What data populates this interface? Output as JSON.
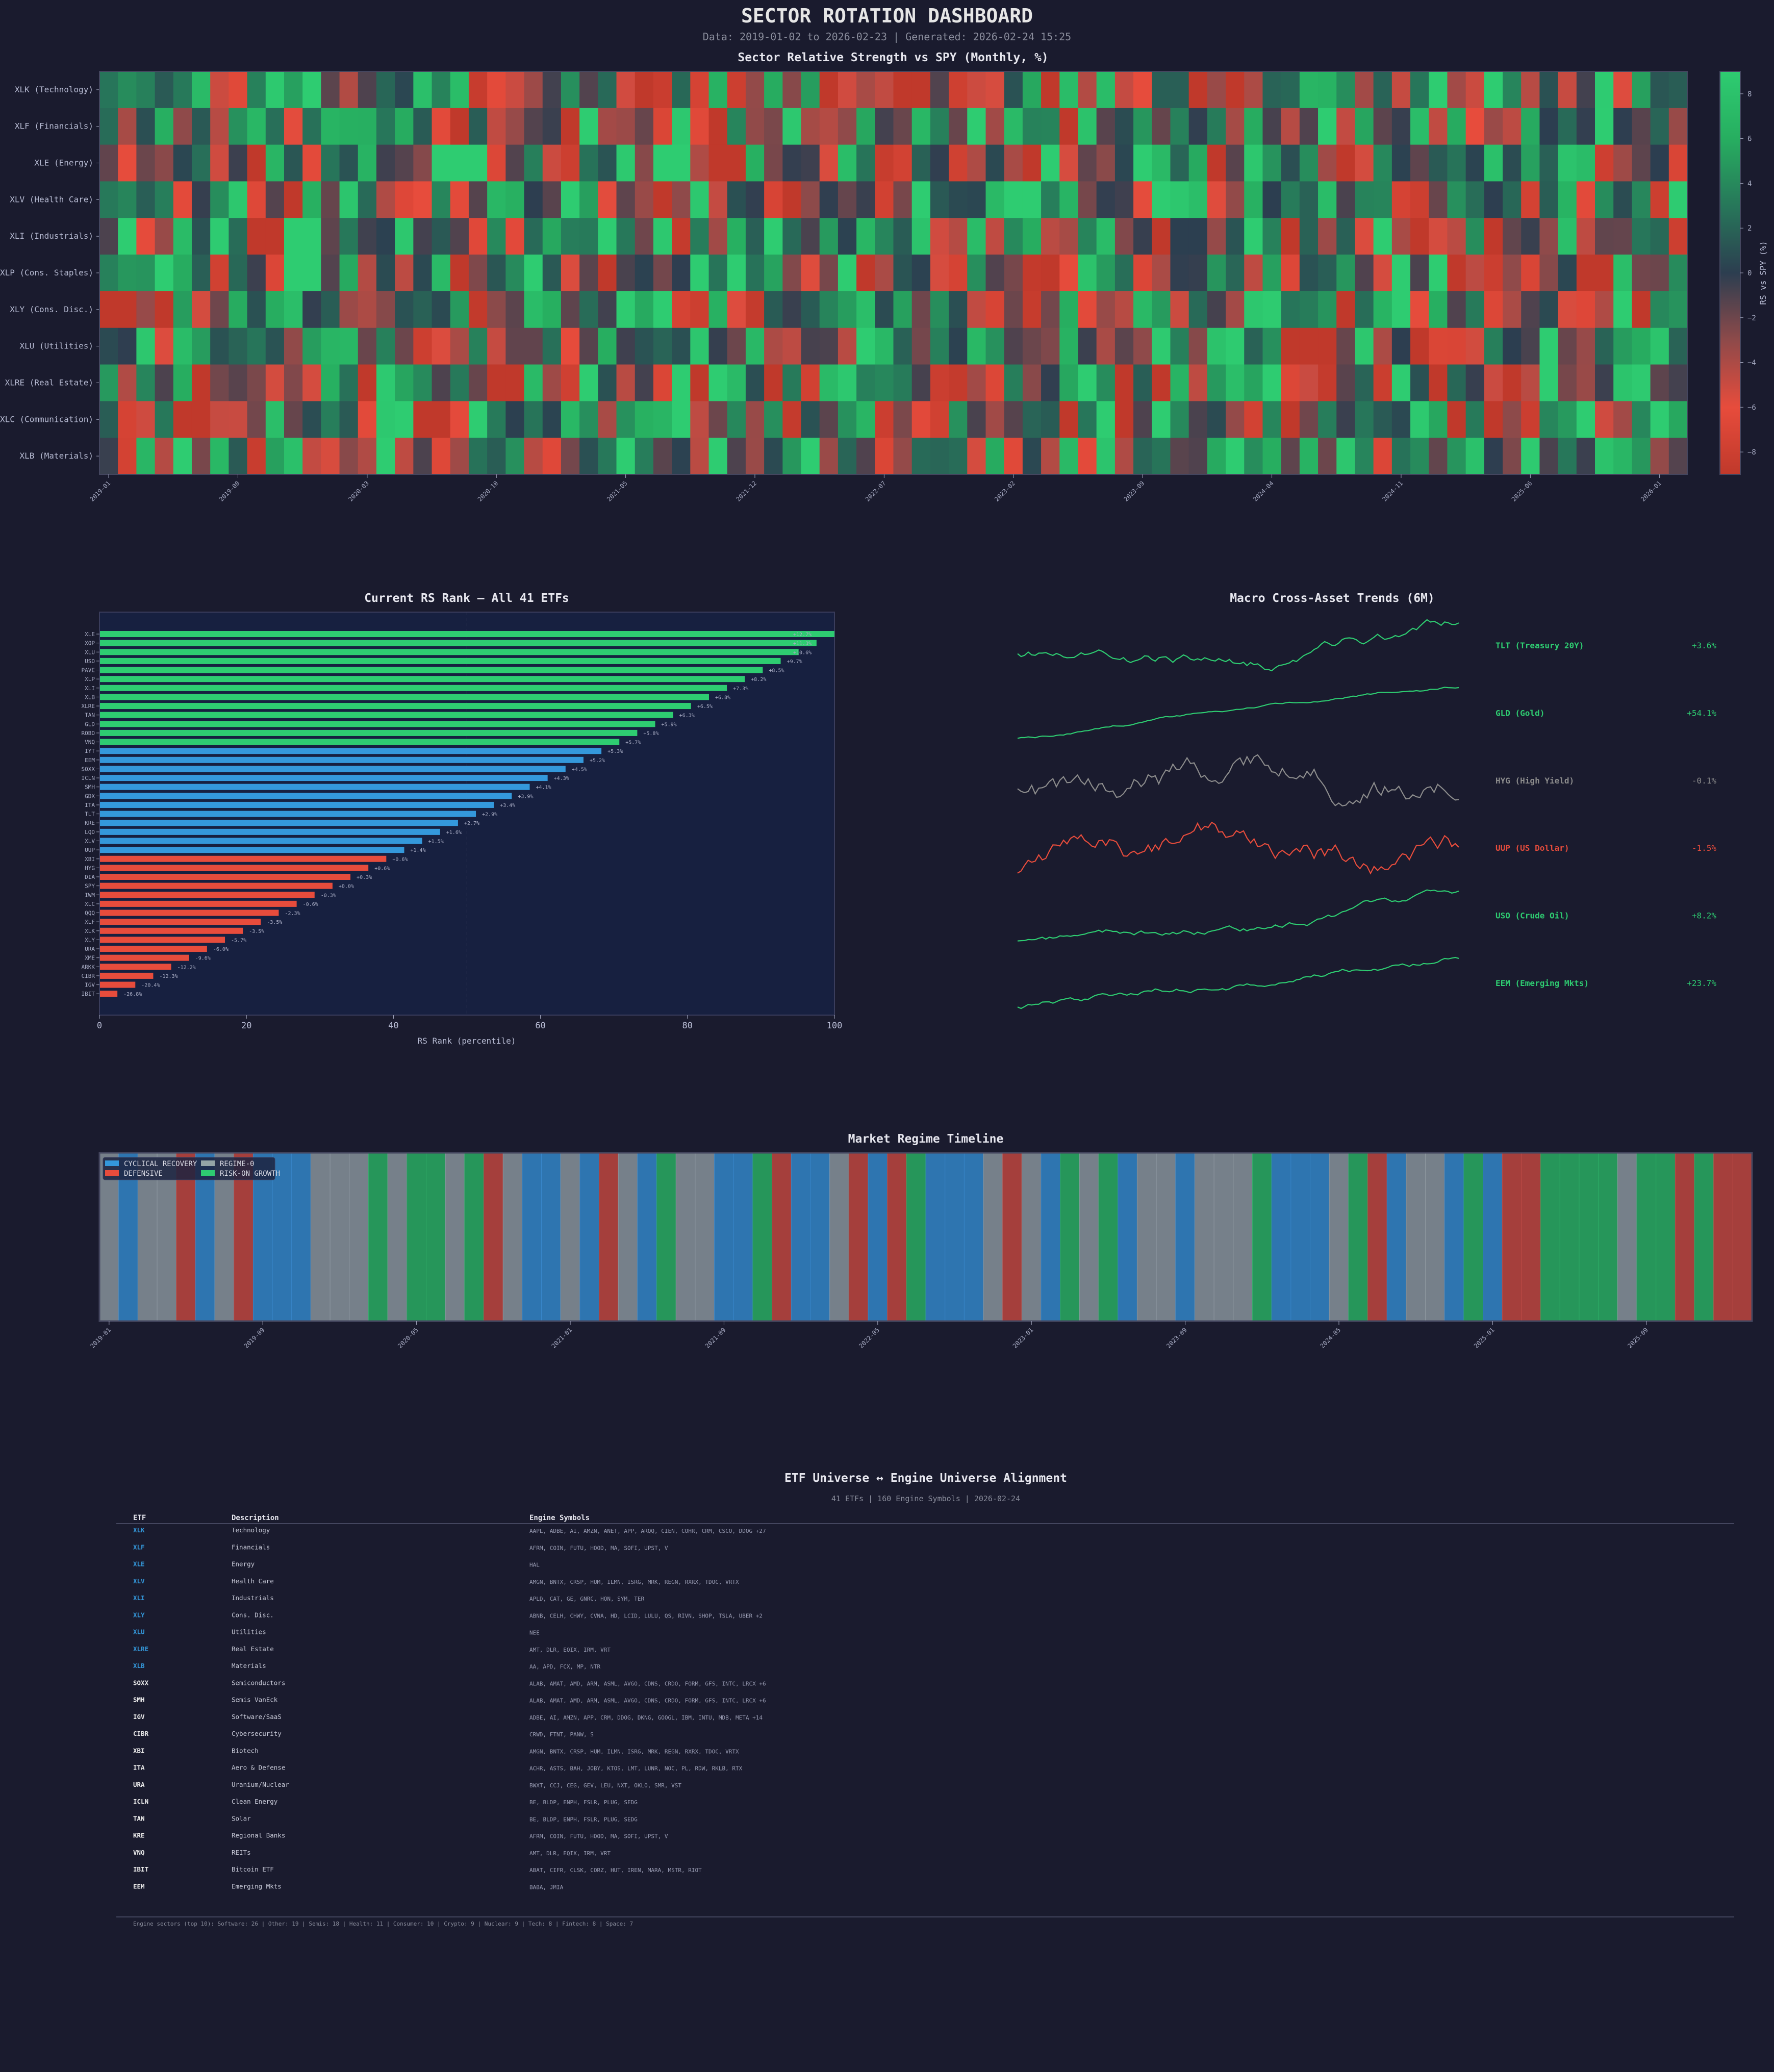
{
  "header": {
    "title": "SECTOR ROTATION DASHBOARD",
    "subtitle": "Data: 2019-01-02 to 2026-02-23 | Generated: 2026-02-24 15:25"
  },
  "colors": {
    "background": "#1a1b2e",
    "panel": "#172040",
    "green": "#2ecc71",
    "blue": "#3498db",
    "red": "#e74c3c",
    "gray": "#95a5a6"
  },
  "chart_data": [
    {
      "type": "heatmap",
      "title": "Sector Relative Strength vs SPY (Monthly, %)",
      "rows": [
        "XLK (Technology)",
        "XLF (Financials)",
        "XLE (Energy)",
        "XLV (Health Care)",
        "XLI (Industrials)",
        "XLP (Cons. Staples)",
        "XLY (Cons. Disc.)",
        "XLU (Utilities)",
        "XLRE (Real Estate)",
        "XLC (Communication)",
        "XLB (Materials)"
      ],
      "x_range": [
        "2019-01",
        "2026-02"
      ],
      "x_ticks": [
        "2019-01",
        "2019-08",
        "2020-03",
        "2020-10",
        "2021-05",
        "2021-12",
        "2022-07",
        "2023-02",
        "2023-09",
        "2024-04",
        "2024-11",
        "2025-06",
        "2026-01"
      ],
      "colorbar": {
        "label": "RS vs SPY (%)",
        "range": [
          -9,
          9
        ],
        "ticks": [
          "8",
          "6",
          "4",
          "2",
          "0",
          "−2",
          "−4",
          "−6",
          "−8"
        ],
        "tick_values": [
          8,
          6,
          4,
          2,
          0,
          -2,
          -4,
          -6,
          -8
        ]
      },
      "colormap": [
        "#c0392b",
        "#e74c3c",
        "#8e4a4a",
        "#2c3e50",
        "#27775a",
        "#27ae60",
        "#2ecc71"
      ]
    },
    {
      "type": "bar",
      "orientation": "horizontal",
      "title": "Current RS Rank — All 41 ETFs",
      "xlabel": "RS Rank (percentile)",
      "xlim": [
        0,
        100
      ],
      "x_ticks": [
        "0",
        "20",
        "40",
        "60",
        "80",
        "100"
      ],
      "reference_line": 50,
      "grid": false,
      "bars": [
        {
          "etf": "XLE",
          "change": "+12.7%",
          "group": "green"
        },
        {
          "etf": "XOP",
          "change": "+11.3%",
          "group": "green"
        },
        {
          "etf": "XLU",
          "change": "+10.6%",
          "group": "green"
        },
        {
          "etf": "USO",
          "change": "+9.7%",
          "group": "green"
        },
        {
          "etf": "PAVE",
          "change": "+8.5%",
          "group": "green"
        },
        {
          "etf": "XLP",
          "change": "+8.2%",
          "group": "green"
        },
        {
          "etf": "XLI",
          "change": "+7.3%",
          "group": "green"
        },
        {
          "etf": "XLB",
          "change": "+6.8%",
          "group": "green"
        },
        {
          "etf": "XLRE",
          "change": "+6.5%",
          "group": "green"
        },
        {
          "etf": "TAN",
          "change": "+6.3%",
          "group": "green"
        },
        {
          "etf": "GLD",
          "change": "+5.9%",
          "group": "green"
        },
        {
          "etf": "ROBO",
          "change": "+5.8%",
          "group": "green"
        },
        {
          "etf": "VNQ",
          "change": "+5.7%",
          "group": "green"
        },
        {
          "etf": "IYT",
          "change": "+5.3%",
          "group": "blue"
        },
        {
          "etf": "EEM",
          "change": "+5.2%",
          "group": "blue"
        },
        {
          "etf": "SOXX",
          "change": "+4.5%",
          "group": "blue"
        },
        {
          "etf": "ICLN",
          "change": "+4.3%",
          "group": "blue"
        },
        {
          "etf": "SMH",
          "change": "+4.1%",
          "group": "blue"
        },
        {
          "etf": "GDX",
          "change": "+3.9%",
          "group": "blue"
        },
        {
          "etf": "ITA",
          "change": "+3.4%",
          "group": "blue"
        },
        {
          "etf": "TLT",
          "change": "+2.9%",
          "group": "blue"
        },
        {
          "etf": "KRE",
          "change": "+2.7%",
          "group": "blue"
        },
        {
          "etf": "LQD",
          "change": "+1.6%",
          "group": "blue"
        },
        {
          "etf": "XLV",
          "change": "+1.5%",
          "group": "blue"
        },
        {
          "etf": "UUP",
          "change": "+1.4%",
          "group": "blue"
        },
        {
          "etf": "XBI",
          "change": "+0.6%",
          "group": "red"
        },
        {
          "etf": "HYG",
          "change": "+0.6%",
          "group": "red"
        },
        {
          "etf": "DIA",
          "change": "+0.3%",
          "group": "red"
        },
        {
          "etf": "SPY",
          "change": "+0.0%",
          "group": "red"
        },
        {
          "etf": "IWM",
          "change": "-0.3%",
          "group": "red"
        },
        {
          "etf": "XLC",
          "change": "-0.6%",
          "group": "red"
        },
        {
          "etf": "QQQ",
          "change": "-2.3%",
          "group": "red"
        },
        {
          "etf": "XLF",
          "change": "-3.5%",
          "group": "red"
        },
        {
          "etf": "XLK",
          "change": "-3.5%",
          "group": "red"
        },
        {
          "etf": "XLY",
          "change": "-5.7%",
          "group": "red"
        },
        {
          "etf": "URA",
          "change": "-6.0%",
          "group": "red"
        },
        {
          "etf": "XME",
          "change": "-9.6%",
          "group": "red"
        },
        {
          "etf": "ARKK",
          "change": "-12.2%",
          "group": "red"
        },
        {
          "etf": "CIBR",
          "change": "-12.3%",
          "group": "red"
        },
        {
          "etf": "IGV",
          "change": "-20.4%",
          "group": "red"
        },
        {
          "etf": "IBIT",
          "change": "-26.8%",
          "group": "red"
        }
      ]
    },
    {
      "type": "line",
      "title": "Macro Cross-Asset Trends (6M)",
      "series": [
        {
          "name": "TLT (Treasury 20Y)",
          "change": "+3.6%",
          "color": "#2ecc71"
        },
        {
          "name": "GLD (Gold)",
          "change": "+54.1%",
          "color": "#2ecc71"
        },
        {
          "name": "HYG (High Yield)",
          "change": "-0.1%",
          "color": "#8c8c8c"
        },
        {
          "name": "UUP (US Dollar)",
          "change": "-1.5%",
          "color": "#e74c3c"
        },
        {
          "name": "USO (Crude Oil)",
          "change": "+8.2%",
          "color": "#2ecc71"
        },
        {
          "name": "EEM (Emerging Mkts)",
          "change": "+23.7%",
          "color": "#2ecc71"
        }
      ]
    },
    {
      "type": "timeline",
      "title": "Market Regime Timeline",
      "x_range": [
        "2019-01",
        "2026-02"
      ],
      "x_ticks": [
        "2019-01",
        "2019-09",
        "2020-05",
        "2021-01",
        "2021-09",
        "2022-05",
        "2023-01",
        "2023-09",
        "2024-05",
        "2025-01",
        "2025-09"
      ],
      "legend": [
        {
          "code": "C",
          "label": "CYCLICAL RECOVERY",
          "color": "#3498db"
        },
        {
          "code": "D",
          "label": "DEFENSIVE",
          "color": "#e74c3c"
        },
        {
          "code": "N",
          "label": "REGIME-0",
          "color": "#95a5a6"
        },
        {
          "code": "R",
          "label": "RISK-ON GROWTH",
          "color": "#2ecc71"
        }
      ],
      "legend_position": "top-left",
      "monthly_regimes": [
        "N",
        "C",
        "N",
        "N",
        "D",
        "C",
        "N",
        "D",
        "C",
        "C",
        "C",
        "N",
        "N",
        "N",
        "R",
        "N",
        "R",
        "R",
        "N",
        "R",
        "D",
        "N",
        "C",
        "C",
        "N",
        "C",
        "D",
        "N",
        "C",
        "R",
        "N",
        "N",
        "C",
        "C",
        "R",
        "D",
        "C",
        "C",
        "N",
        "D",
        "C",
        "D",
        "R",
        "C",
        "C",
        "C",
        "N",
        "D",
        "N",
        "C",
        "R",
        "N",
        "R",
        "C",
        "N",
        "N",
        "C",
        "N",
        "N",
        "N",
        "R",
        "C",
        "C",
        "C",
        "N",
        "R",
        "D",
        "C",
        "N",
        "N",
        "C",
        "R",
        "C",
        "D",
        "D",
        "R",
        "R",
        "R",
        "R",
        "N",
        "R",
        "R",
        "D",
        "R",
        "D",
        "D"
      ]
    }
  ],
  "alignment": {
    "title": "ETF Universe ↔ Engine Universe Alignment",
    "subtitle": "41 ETFs | 160 Engine Symbols | 2026-02-24",
    "columns": [
      "ETF",
      "Description",
      "Engine Symbols"
    ],
    "rows": [
      {
        "etf": "XLK",
        "desc": "Technology",
        "symbols": "AAPL, ADBE, AI, AMZN, ANET, APP, ARQQ, CIEN, COHR, CRM, CSCO, DDOG +27",
        "spdr": true
      },
      {
        "etf": "XLF",
        "desc": "Financials",
        "symbols": "AFRM, COIN, FUTU, HOOD, MA, SOFI, UPST, V",
        "spdr": true
      },
      {
        "etf": "XLE",
        "desc": "Energy",
        "symbols": "HAL",
        "spdr": true
      },
      {
        "etf": "XLV",
        "desc": "Health Care",
        "symbols": "AMGN, BNTX, CRSP, HUM, ILMN, ISRG, MRK, REGN, RXRX, TDOC, VRTX",
        "spdr": true
      },
      {
        "etf": "XLI",
        "desc": "Industrials",
        "symbols": "APLD, CAT, GE, GNRC, HON, SYM, TER",
        "spdr": true
      },
      {
        "etf": "XLY",
        "desc": "Cons. Disc.",
        "symbols": "ABNB, CELH, CHWY, CVNA, HD, LCID, LULU, QS, RIVN, SHOP, TSLA, UBER +2",
        "spdr": true
      },
      {
        "etf": "XLU",
        "desc": "Utilities",
        "symbols": "NEE",
        "spdr": true
      },
      {
        "etf": "XLRE",
        "desc": "Real Estate",
        "symbols": "AMT, DLR, EQIX, IRM, VRT",
        "spdr": true
      },
      {
        "etf": "XLB",
        "desc": "Materials",
        "symbols": "AA, APD, FCX, MP, NTR",
        "spdr": true
      },
      {
        "etf": "SOXX",
        "desc": "Semiconductors",
        "symbols": "ALAB, AMAT, AMD, ARM, ASML, AVGO, CDNS, CRDO, FORM, GFS, INTC, LRCX +6",
        "spdr": false
      },
      {
        "etf": "SMH",
        "desc": "Semis VanEck",
        "symbols": "ALAB, AMAT, AMD, ARM, ASML, AVGO, CDNS, CRDO, FORM, GFS, INTC, LRCX +6",
        "spdr": false
      },
      {
        "etf": "IGV",
        "desc": "Software/SaaS",
        "symbols": "ADBE, AI, AMZN, APP, CRM, DDOG, DKNG, GOOGL, IBM, INTU, MDB, META +14",
        "spdr": false
      },
      {
        "etf": "CIBR",
        "desc": "Cybersecurity",
        "symbols": "CRWD, FTNT, PANW, S",
        "spdr": false
      },
      {
        "etf": "XBI",
        "desc": "Biotech",
        "symbols": "AMGN, BNTX, CRSP, HUM, ILMN, ISRG, MRK, REGN, RXRX, TDOC, VRTX",
        "spdr": false
      },
      {
        "etf": "ITA",
        "desc": "Aero & Defense",
        "symbols": "ACHR, ASTS, BAH, JOBY, KTOS, LMT, LUNR, NOC, PL, RDW, RKLB, RTX",
        "spdr": false
      },
      {
        "etf": "URA",
        "desc": "Uranium/Nuclear",
        "symbols": "BWXT, CCJ, CEG, GEV, LEU, NXT, OKLO, SMR, VST",
        "spdr": false
      },
      {
        "etf": "ICLN",
        "desc": "Clean Energy",
        "symbols": "BE, BLDP, ENPH, FSLR, PLUG, SEDG",
        "spdr": false
      },
      {
        "etf": "TAN",
        "desc": "Solar",
        "symbols": "BE, BLDP, ENPH, FSLR, PLUG, SEDG",
        "spdr": false
      },
      {
        "etf": "KRE",
        "desc": "Regional Banks",
        "symbols": "AFRM, COIN, FUTU, HOOD, MA, SOFI, UPST, V",
        "spdr": false
      },
      {
        "etf": "VNQ",
        "desc": "REITs",
        "symbols": "AMT, DLR, EQIX, IRM, VRT",
        "spdr": false
      },
      {
        "etf": "IBIT",
        "desc": "Bitcoin ETF",
        "symbols": "ABAT, CIFR, CLSK, CORZ, HUT, IREN, MARA, MSTR, RIOT",
        "spdr": false
      },
      {
        "etf": "EEM",
        "desc": "Emerging Mkts",
        "symbols": "BABA, JMIA",
        "spdr": false
      }
    ],
    "footer": "Engine sectors (top 10): Software: 26 | Other: 19 | Semis: 18 | Health: 11 | Consumer: 10 | Crypto: 9 | Nuclear: 9 | Tech: 8 | Fintech: 8 | Space: 7"
  }
}
